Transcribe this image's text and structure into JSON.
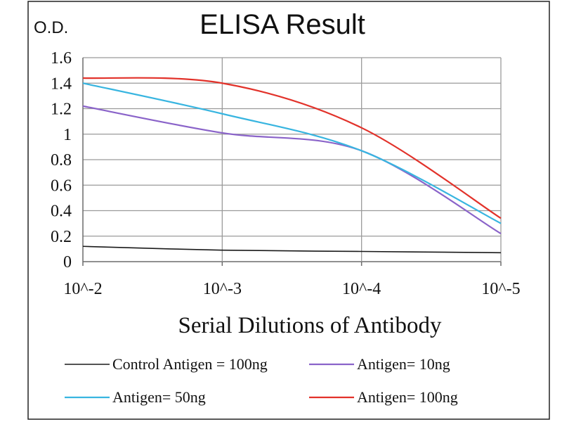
{
  "chart_data": {
    "type": "line",
    "title": "ELISA Result",
    "ylabel": "O.D.",
    "xlabel": "Serial Dilutions  of Antibody",
    "categories": [
      "10^-2",
      "10^-3",
      "10^-4",
      "10^-5"
    ],
    "ylim": [
      0,
      1.6
    ],
    "yticks": [
      "0",
      "0.2",
      "0.4",
      "0.6",
      "0.8",
      "1",
      "1.2",
      "1.4",
      "1.6"
    ],
    "grid": true,
    "legend_position": "bottom",
    "series": [
      {
        "name": "Control Antigen = 100ng",
        "color": "#1a1a1a",
        "values": [
          0.12,
          0.09,
          0.08,
          0.07
        ]
      },
      {
        "name": "Antigen= 10ng",
        "color": "#8a63c9",
        "values": [
          1.22,
          1.01,
          0.87,
          0.22
        ]
      },
      {
        "name": "Antigen= 50ng",
        "color": "#38b5e0",
        "values": [
          1.4,
          1.16,
          0.87,
          0.3
        ]
      },
      {
        "name": "Antigen= 100ng",
        "color": "#e2322a",
        "values": [
          1.44,
          1.4,
          1.05,
          0.34
        ]
      }
    ]
  }
}
